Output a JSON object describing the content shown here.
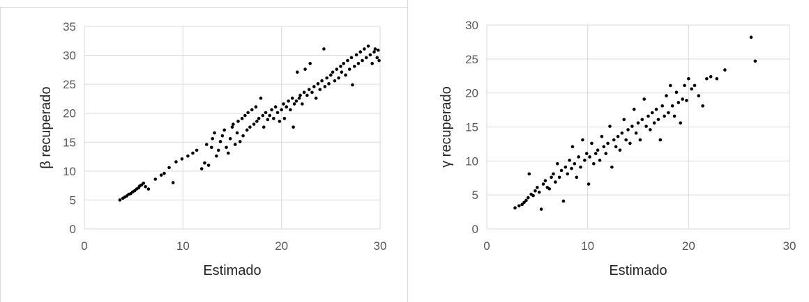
{
  "chart_data": [
    {
      "type": "scatter",
      "title": "",
      "xlabel": "Estimado",
      "ylabel": "β recuperado",
      "xlim": [
        0,
        30
      ],
      "ylim": [
        0,
        35
      ],
      "xticks": [
        "0",
        "10",
        "20",
        "30"
      ],
      "yticks": [
        "0",
        "5",
        "10",
        "15",
        "20",
        "25",
        "30",
        "35"
      ],
      "grid": true,
      "legend": "none",
      "marker_color": "#000000",
      "series": [
        {
          "points": [
            [
              3.6,
              5.0
            ],
            [
              3.9,
              5.3
            ],
            [
              4.1,
              5.5
            ],
            [
              4.3,
              5.7
            ],
            [
              4.5,
              6.0
            ],
            [
              4.7,
              6.1
            ],
            [
              4.9,
              6.4
            ],
            [
              5.1,
              6.6
            ],
            [
              5.3,
              6.9
            ],
            [
              5.5,
              7.1
            ],
            [
              5.6,
              7.4
            ],
            [
              5.8,
              7.6
            ],
            [
              6.0,
              7.9
            ],
            [
              6.2,
              7.3
            ],
            [
              6.5,
              6.9
            ],
            [
              7.2,
              8.6
            ],
            [
              7.8,
              9.3
            ],
            [
              8.1,
              9.6
            ],
            [
              8.6,
              10.6
            ],
            [
              9.0,
              8.0
            ],
            [
              9.3,
              11.6
            ],
            [
              9.9,
              12.1
            ],
            [
              10.5,
              12.6
            ],
            [
              11.0,
              13.1
            ],
            [
              11.4,
              13.6
            ],
            [
              11.9,
              10.4
            ],
            [
              12.2,
              11.4
            ],
            [
              12.4,
              14.6
            ],
            [
              12.6,
              11.0
            ],
            [
              12.9,
              14.1
            ],
            [
              13.0,
              15.6
            ],
            [
              13.2,
              16.6
            ],
            [
              13.4,
              12.6
            ],
            [
              13.6,
              13.6
            ],
            [
              13.8,
              15.1
            ],
            [
              14.0,
              16.1
            ],
            [
              14.2,
              17.1
            ],
            [
              14.4,
              14.1
            ],
            [
              14.6,
              13.1
            ],
            [
              14.8,
              15.6
            ],
            [
              15.0,
              17.6
            ],
            [
              15.1,
              18.1
            ],
            [
              15.3,
              14.6
            ],
            [
              15.5,
              16.6
            ],
            [
              15.6,
              18.6
            ],
            [
              15.8,
              15.1
            ],
            [
              16.0,
              19.1
            ],
            [
              16.1,
              16.1
            ],
            [
              16.3,
              19.6
            ],
            [
              16.5,
              17.1
            ],
            [
              16.6,
              20.1
            ],
            [
              16.8,
              17.6
            ],
            [
              17.0,
              20.6
            ],
            [
              17.2,
              18.1
            ],
            [
              17.4,
              21.1
            ],
            [
              17.5,
              18.6
            ],
            [
              17.7,
              19.1
            ],
            [
              17.9,
              22.6
            ],
            [
              18.1,
              19.6
            ],
            [
              18.2,
              17.6
            ],
            [
              18.4,
              20.1
            ],
            [
              18.6,
              18.9
            ],
            [
              18.8,
              19.6
            ],
            [
              19.0,
              20.6
            ],
            [
              19.2,
              19.1
            ],
            [
              19.4,
              21.1
            ],
            [
              19.6,
              20.1
            ],
            [
              19.8,
              18.6
            ],
            [
              20.0,
              20.6
            ],
            [
              20.2,
              21.6
            ],
            [
              20.3,
              19.1
            ],
            [
              20.5,
              21.1
            ],
            [
              20.7,
              22.1
            ],
            [
              20.9,
              20.6
            ],
            [
              21.1,
              22.6
            ],
            [
              21.2,
              17.6
            ],
            [
              21.3,
              21.6
            ],
            [
              21.5,
              22.1
            ],
            [
              21.6,
              27.1
            ],
            [
              21.8,
              22.6
            ],
            [
              21.9,
              23.1
            ],
            [
              22.1,
              21.6
            ],
            [
              22.3,
              23.6
            ],
            [
              22.4,
              27.6
            ],
            [
              22.6,
              23.1
            ],
            [
              22.8,
              24.1
            ],
            [
              22.9,
              28.6
            ],
            [
              23.1,
              23.6
            ],
            [
              23.3,
              24.6
            ],
            [
              23.5,
              22.6
            ],
            [
              23.7,
              25.1
            ],
            [
              23.9,
              24.1
            ],
            [
              24.1,
              25.6
            ],
            [
              24.3,
              31.1
            ],
            [
              24.4,
              24.6
            ],
            [
              24.6,
              26.1
            ],
            [
              24.8,
              25.1
            ],
            [
              25.0,
              26.6
            ],
            [
              25.2,
              27.1
            ],
            [
              25.4,
              25.6
            ],
            [
              25.6,
              27.6
            ],
            [
              25.8,
              26.1
            ],
            [
              26.0,
              28.1
            ],
            [
              26.1,
              27.1
            ],
            [
              26.3,
              28.6
            ],
            [
              26.5,
              26.6
            ],
            [
              26.7,
              29.1
            ],
            [
              26.9,
              27.6
            ],
            [
              27.1,
              29.6
            ],
            [
              27.2,
              24.9
            ],
            [
              27.4,
              28.1
            ],
            [
              27.6,
              30.1
            ],
            [
              27.8,
              28.6
            ],
            [
              28.0,
              30.6
            ],
            [
              28.2,
              29.1
            ],
            [
              28.4,
              31.1
            ],
            [
              28.6,
              29.6
            ],
            [
              28.8,
              31.6
            ],
            [
              29.0,
              30.1
            ],
            [
              29.2,
              28.6
            ],
            [
              29.4,
              30.6
            ],
            [
              29.5,
              31.1
            ],
            [
              29.7,
              29.6
            ],
            [
              29.8,
              30.9
            ],
            [
              29.9,
              29.1
            ]
          ]
        }
      ]
    },
    {
      "type": "scatter",
      "title": "",
      "xlabel": "Estimado",
      "ylabel": "γ recuperado",
      "xlim": [
        0,
        30
      ],
      "ylim": [
        0,
        30
      ],
      "xticks": [
        "0",
        "10",
        "20",
        "30"
      ],
      "yticks": [
        "0",
        "5",
        "10",
        "15",
        "20",
        "25",
        "30"
      ],
      "grid": true,
      "legend": "none",
      "marker_color": "#000000",
      "series": [
        {
          "points": [
            [
              2.8,
              3.1
            ],
            [
              3.2,
              3.4
            ],
            [
              3.5,
              3.6
            ],
            [
              3.7,
              3.9
            ],
            [
              3.9,
              4.2
            ],
            [
              4.1,
              4.6
            ],
            [
              4.2,
              8.1
            ],
            [
              4.4,
              5.1
            ],
            [
              4.6,
              4.9
            ],
            [
              4.8,
              5.6
            ],
            [
              5.0,
              6.1
            ],
            [
              5.2,
              5.4
            ],
            [
              5.4,
              2.9
            ],
            [
              5.6,
              6.6
            ],
            [
              5.8,
              7.1
            ],
            [
              6.0,
              6.1
            ],
            [
              6.2,
              5.9
            ],
            [
              6.4,
              7.6
            ],
            [
              6.6,
              8.1
            ],
            [
              6.8,
              6.9
            ],
            [
              7.0,
              9.6
            ],
            [
              7.2,
              7.6
            ],
            [
              7.4,
              8.6
            ],
            [
              7.6,
              4.1
            ],
            [
              7.8,
              9.1
            ],
            [
              8.0,
              8.1
            ],
            [
              8.2,
              10.1
            ],
            [
              8.4,
              8.9
            ],
            [
              8.5,
              12.1
            ],
            [
              8.7,
              9.6
            ],
            [
              8.9,
              7.6
            ],
            [
              9.1,
              10.6
            ],
            [
              9.3,
              9.1
            ],
            [
              9.5,
              13.1
            ],
            [
              9.7,
              10.1
            ],
            [
              9.9,
              11.1
            ],
            [
              10.1,
              6.6
            ],
            [
              10.2,
              10.6
            ],
            [
              10.4,
              12.6
            ],
            [
              10.6,
              9.6
            ],
            [
              10.8,
              11.1
            ],
            [
              11.0,
              11.6
            ],
            [
              11.2,
              10.1
            ],
            [
              11.4,
              13.6
            ],
            [
              11.6,
              12.1
            ],
            [
              11.8,
              11.1
            ],
            [
              12.0,
              12.6
            ],
            [
              12.2,
              15.1
            ],
            [
              12.4,
              9.1
            ],
            [
              12.6,
              13.1
            ],
            [
              12.8,
              12.1
            ],
            [
              13.0,
              13.6
            ],
            [
              13.2,
              11.6
            ],
            [
              13.4,
              14.1
            ],
            [
              13.6,
              16.1
            ],
            [
              13.8,
              13.1
            ],
            [
              14.0,
              14.6
            ],
            [
              14.2,
              12.6
            ],
            [
              14.4,
              15.1
            ],
            [
              14.6,
              17.6
            ],
            [
              14.8,
              14.1
            ],
            [
              15.0,
              15.6
            ],
            [
              15.2,
              13.1
            ],
            [
              15.4,
              16.1
            ],
            [
              15.6,
              19.1
            ],
            [
              15.8,
              15.1
            ],
            [
              16.0,
              16.6
            ],
            [
              16.2,
              14.6
            ],
            [
              16.4,
              17.1
            ],
            [
              16.6,
              15.6
            ],
            [
              16.8,
              17.6
            ],
            [
              17.0,
              16.1
            ],
            [
              17.2,
              13.1
            ],
            [
              17.4,
              18.1
            ],
            [
              17.6,
              16.6
            ],
            [
              17.8,
              19.6
            ],
            [
              18.0,
              17.1
            ],
            [
              18.2,
              21.1
            ],
            [
              18.4,
              18.1
            ],
            [
              18.6,
              16.6
            ],
            [
              18.8,
              20.1
            ],
            [
              19.0,
              18.6
            ],
            [
              19.2,
              15.6
            ],
            [
              19.4,
              19.1
            ],
            [
              19.6,
              21.1
            ],
            [
              19.8,
              18.9
            ],
            [
              20.0,
              22.1
            ],
            [
              20.3,
              20.6
            ],
            [
              20.6,
              21.1
            ],
            [
              21.0,
              19.6
            ],
            [
              21.4,
              18.1
            ],
            [
              21.8,
              22.1
            ],
            [
              22.2,
              22.4
            ],
            [
              22.8,
              22.1
            ],
            [
              23.6,
              23.4
            ],
            [
              26.2,
              28.2
            ],
            [
              26.6,
              24.7
            ]
          ]
        }
      ]
    }
  ]
}
